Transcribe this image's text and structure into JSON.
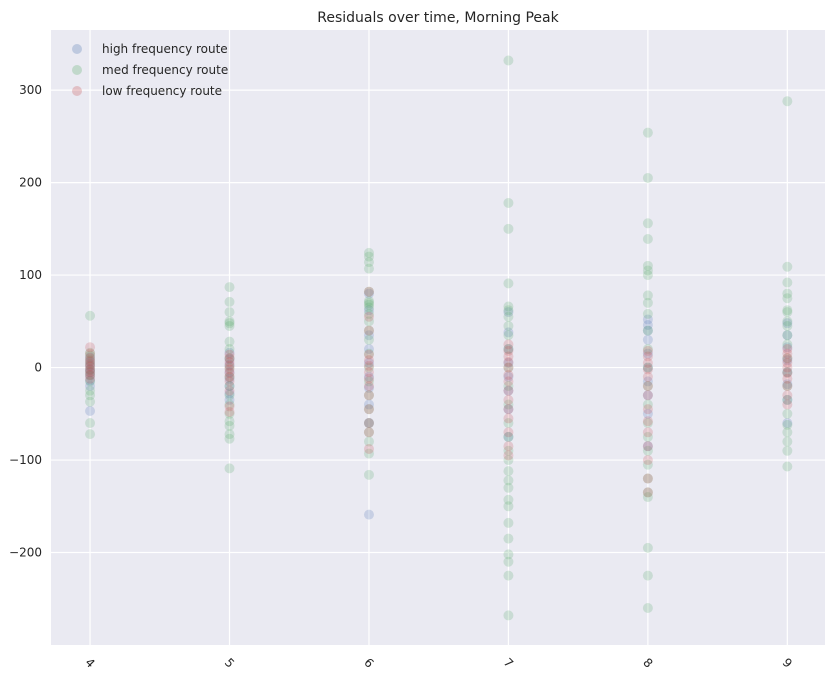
{
  "chart_data": {
    "type": "scatter",
    "title": "Residuals over time, Morning Peak",
    "xlabel": "",
    "ylabel": "",
    "x_ticks": [
      4,
      5,
      6,
      7,
      8,
      9
    ],
    "x_tick_rotation_deg": 45,
    "y_ticks": [
      -200,
      -100,
      0,
      100,
      200,
      300
    ],
    "xlim": [
      3.72,
      9.27
    ],
    "ylim": [
      -300,
      365
    ],
    "grid": true,
    "legend_position": "top-left",
    "background_color": "#eaeaf2",
    "series": [
      {
        "name": "high frequency route",
        "color": "#4c72b0",
        "alpha": 0.22,
        "points": [
          [
            4,
            -47
          ],
          [
            4,
            -20
          ],
          [
            4,
            -14
          ],
          [
            4,
            -9
          ],
          [
            4,
            -5
          ],
          [
            4,
            -2
          ],
          [
            4,
            2
          ],
          [
            4,
            6
          ],
          [
            4,
            11
          ],
          [
            5,
            -35
          ],
          [
            5,
            -28
          ],
          [
            5,
            -20
          ],
          [
            5,
            -12
          ],
          [
            5,
            -5
          ],
          [
            5,
            3
          ],
          [
            5,
            9
          ],
          [
            5,
            16
          ],
          [
            6,
            -159
          ],
          [
            6,
            -60
          ],
          [
            6,
            -40
          ],
          [
            6,
            -22
          ],
          [
            6,
            -10
          ],
          [
            6,
            5
          ],
          [
            6,
            20
          ],
          [
            6,
            35
          ],
          [
            6,
            62
          ],
          [
            6,
            80
          ],
          [
            7,
            -75
          ],
          [
            7,
            -45
          ],
          [
            7,
            -25
          ],
          [
            7,
            -10
          ],
          [
            7,
            5
          ],
          [
            7,
            20
          ],
          [
            7,
            38
          ],
          [
            7,
            60
          ],
          [
            8,
            -85
          ],
          [
            8,
            -50
          ],
          [
            8,
            -30
          ],
          [
            8,
            -15
          ],
          [
            8,
            0
          ],
          [
            8,
            15
          ],
          [
            8,
            30
          ],
          [
            8,
            40
          ],
          [
            8,
            46
          ],
          [
            8,
            52
          ],
          [
            9,
            -60
          ],
          [
            9,
            -35
          ],
          [
            9,
            -18
          ],
          [
            9,
            -5
          ],
          [
            9,
            8
          ],
          [
            9,
            22
          ],
          [
            9,
            35
          ],
          [
            9,
            48
          ]
        ]
      },
      {
        "name": "med frequency route",
        "color": "#55a868",
        "alpha": 0.22,
        "points": [
          [
            4,
            -72
          ],
          [
            4,
            -60
          ],
          [
            4,
            -37
          ],
          [
            4,
            -30
          ],
          [
            4,
            -25
          ],
          [
            4,
            -15
          ],
          [
            4,
            -8
          ],
          [
            4,
            -3
          ],
          [
            4,
            3
          ],
          [
            4,
            8
          ],
          [
            4,
            13
          ],
          [
            4,
            16
          ],
          [
            4,
            56
          ],
          [
            5,
            -109
          ],
          [
            5,
            -77
          ],
          [
            5,
            -72
          ],
          [
            5,
            -63
          ],
          [
            5,
            -58
          ],
          [
            5,
            -50
          ],
          [
            5,
            -40
          ],
          [
            5,
            -30
          ],
          [
            5,
            -20
          ],
          [
            5,
            -10
          ],
          [
            5,
            0
          ],
          [
            5,
            10
          ],
          [
            5,
            20
          ],
          [
            5,
            28
          ],
          [
            5,
            45
          ],
          [
            5,
            48
          ],
          [
            5,
            50
          ],
          [
            5,
            60
          ],
          [
            5,
            71
          ],
          [
            5,
            87
          ],
          [
            6,
            -116
          ],
          [
            6,
            -93
          ],
          [
            6,
            -80
          ],
          [
            6,
            -70
          ],
          [
            6,
            -60
          ],
          [
            6,
            -45
          ],
          [
            6,
            -30
          ],
          [
            6,
            -15
          ],
          [
            6,
            0
          ],
          [
            6,
            15
          ],
          [
            6,
            30
          ],
          [
            6,
            40
          ],
          [
            6,
            50
          ],
          [
            6,
            58
          ],
          [
            6,
            65
          ],
          [
            6,
            68
          ],
          [
            6,
            70
          ],
          [
            6,
            72
          ],
          [
            6,
            82
          ],
          [
            6,
            107
          ],
          [
            6,
            114
          ],
          [
            6,
            120
          ],
          [
            6,
            124
          ],
          [
            7,
            -268
          ],
          [
            7,
            -225
          ],
          [
            7,
            -210
          ],
          [
            7,
            -202
          ],
          [
            7,
            -185
          ],
          [
            7,
            -168
          ],
          [
            7,
            -150
          ],
          [
            7,
            -143
          ],
          [
            7,
            -130
          ],
          [
            7,
            -122
          ],
          [
            7,
            -112
          ],
          [
            7,
            -100
          ],
          [
            7,
            -90
          ],
          [
            7,
            -75
          ],
          [
            7,
            -60
          ],
          [
            7,
            -40
          ],
          [
            7,
            -20
          ],
          [
            7,
            0
          ],
          [
            7,
            20
          ],
          [
            7,
            35
          ],
          [
            7,
            45
          ],
          [
            7,
            55
          ],
          [
            7,
            62
          ],
          [
            7,
            66
          ],
          [
            7,
            91
          ],
          [
            7,
            150
          ],
          [
            7,
            178
          ],
          [
            7,
            332
          ],
          [
            8,
            -260
          ],
          [
            8,
            -225
          ],
          [
            8,
            -195
          ],
          [
            8,
            -140
          ],
          [
            8,
            -135
          ],
          [
            8,
            -120
          ],
          [
            8,
            -105
          ],
          [
            8,
            -90
          ],
          [
            8,
            -75
          ],
          [
            8,
            -60
          ],
          [
            8,
            -40
          ],
          [
            8,
            -20
          ],
          [
            8,
            0
          ],
          [
            8,
            20
          ],
          [
            8,
            40
          ],
          [
            8,
            58
          ],
          [
            8,
            70
          ],
          [
            8,
            78
          ],
          [
            8,
            100
          ],
          [
            8,
            105
          ],
          [
            8,
            110
          ],
          [
            8,
            139
          ],
          [
            8,
            156
          ],
          [
            8,
            205
          ],
          [
            8,
            254
          ],
          [
            9,
            -107
          ],
          [
            9,
            -90
          ],
          [
            9,
            -80
          ],
          [
            9,
            -70
          ],
          [
            9,
            -62
          ],
          [
            9,
            -50
          ],
          [
            9,
            -35
          ],
          [
            9,
            -20
          ],
          [
            9,
            -5
          ],
          [
            9,
            10
          ],
          [
            9,
            25
          ],
          [
            9,
            35
          ],
          [
            9,
            45
          ],
          [
            9,
            50
          ],
          [
            9,
            60
          ],
          [
            9,
            62
          ],
          [
            9,
            75
          ],
          [
            9,
            80
          ],
          [
            9,
            92
          ],
          [
            9,
            109
          ],
          [
            9,
            288
          ]
        ]
      },
      {
        "name": "low frequency route",
        "color": "#c44e52",
        "alpha": 0.22,
        "points": [
          [
            4,
            -12
          ],
          [
            4,
            -8
          ],
          [
            4,
            -5
          ],
          [
            4,
            -2
          ],
          [
            4,
            1
          ],
          [
            4,
            4
          ],
          [
            4,
            7
          ],
          [
            4,
            10
          ],
          [
            4,
            15
          ],
          [
            4,
            22
          ],
          [
            5,
            -48
          ],
          [
            5,
            -42
          ],
          [
            5,
            -25
          ],
          [
            5,
            -15
          ],
          [
            5,
            -10
          ],
          [
            5,
            -6
          ],
          [
            5,
            -2
          ],
          [
            5,
            2
          ],
          [
            5,
            6
          ],
          [
            5,
            10
          ],
          [
            5,
            14
          ],
          [
            6,
            -88
          ],
          [
            6,
            -70
          ],
          [
            6,
            -60
          ],
          [
            6,
            -45
          ],
          [
            6,
            -30
          ],
          [
            6,
            -20
          ],
          [
            6,
            -12
          ],
          [
            6,
            -5
          ],
          [
            6,
            2
          ],
          [
            6,
            8
          ],
          [
            6,
            14
          ],
          [
            6,
            40
          ],
          [
            6,
            55
          ],
          [
            6,
            82
          ],
          [
            7,
            -95
          ],
          [
            7,
            -85
          ],
          [
            7,
            -70
          ],
          [
            7,
            -55
          ],
          [
            7,
            -45
          ],
          [
            7,
            -35
          ],
          [
            7,
            -25
          ],
          [
            7,
            -15
          ],
          [
            7,
            -8
          ],
          [
            7,
            0
          ],
          [
            7,
            6
          ],
          [
            7,
            12
          ],
          [
            7,
            18
          ],
          [
            7,
            25
          ],
          [
            8,
            -135
          ],
          [
            8,
            -120
          ],
          [
            8,
            -100
          ],
          [
            8,
            -85
          ],
          [
            8,
            -70
          ],
          [
            8,
            -58
          ],
          [
            8,
            -45
          ],
          [
            8,
            -30
          ],
          [
            8,
            -20
          ],
          [
            8,
            -10
          ],
          [
            8,
            -2
          ],
          [
            8,
            5
          ],
          [
            8,
            12
          ],
          [
            8,
            18
          ],
          [
            9,
            -40
          ],
          [
            9,
            -30
          ],
          [
            9,
            -20
          ],
          [
            9,
            -12
          ],
          [
            9,
            -6
          ],
          [
            9,
            0
          ],
          [
            9,
            5
          ],
          [
            9,
            10
          ],
          [
            9,
            15
          ],
          [
            9,
            20
          ]
        ]
      }
    ]
  }
}
